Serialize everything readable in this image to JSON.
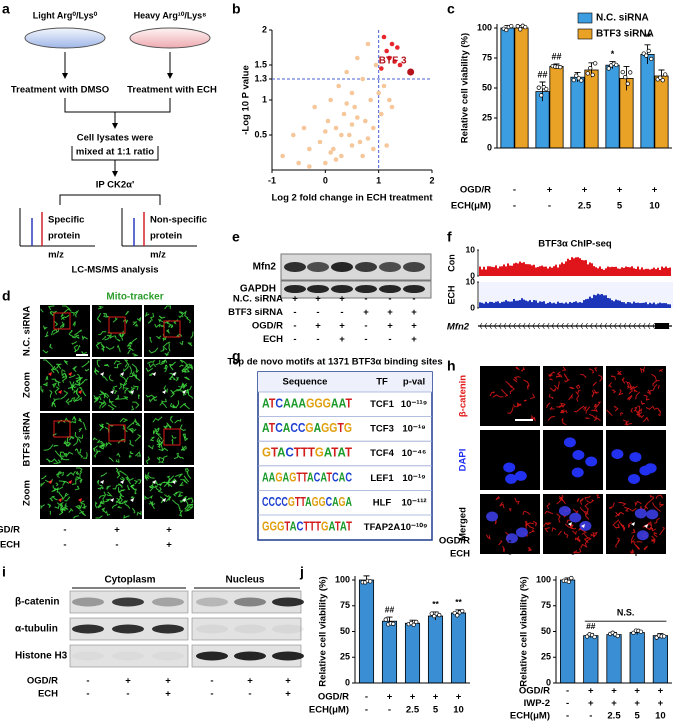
{
  "a": {
    "label": "a",
    "light": "Light  Arg⁰/Lys⁰",
    "heavy": "Heavy  Arg¹⁰/Lys⁸",
    "dmso": "Treatment with DMSO",
    "ech": "Treatment with ECH",
    "lysates": [
      "Cell lysates were",
      "mixed at 1:1 ratio"
    ],
    "ip": "IP CK2α'",
    "specific": [
      "Specific",
      "protein"
    ],
    "nonspecific": [
      "Non-specific",
      "protein"
    ],
    "mz": "m/z",
    "analysis": "LC-MS/MS analysis"
  },
  "b": {
    "label": "b",
    "type": "scatter",
    "x_label": "Log 2 fold change in ECH treatment",
    "y_label": "-Log 10 P value",
    "xlim": [
      -1,
      2
    ],
    "ylim": [
      0,
      2
    ],
    "xticks": [
      -1,
      0,
      1,
      2
    ],
    "yticks": [
      0.5,
      1,
      1.3,
      1.5,
      2
    ],
    "threshold_x": 1,
    "threshold_y": 1.3,
    "points": {
      "color": "#f6c79b",
      "x": [
        -0.8,
        -0.6,
        -0.5,
        -0.4,
        -0.3,
        -0.2,
        -0.1,
        0,
        0.05,
        0.1,
        0.15,
        0.2,
        0.25,
        0.3,
        0.35,
        0.4,
        0.45,
        0.5,
        0.55,
        0.6,
        0.65,
        0.7,
        0.75,
        0.8,
        0.85,
        0.9,
        0.95,
        1.0,
        1.05,
        1.1,
        1.2,
        1.25,
        -0.3,
        0.1,
        0.3,
        0.5,
        0.7,
        0.9,
        0.2,
        0.6,
        0.4,
        0.8,
        0.0,
        0.5,
        1.15
      ],
      "y": [
        0.2,
        0.5,
        0.1,
        0.6,
        0.3,
        0.9,
        0.4,
        0.1,
        0.7,
        1.0,
        0.3,
        0.6,
        1.2,
        0.2,
        0.8,
        1.4,
        0.5,
        1.1,
        0.9,
        1.6,
        0.4,
        1.3,
        0.7,
        1.8,
        1.0,
        0.6,
        1.5,
        1.1,
        0.8,
        1.2,
        1.0,
        0.9,
        0.05,
        0.25,
        0.5,
        0.35,
        0.2,
        0.3,
        0.15,
        0.75,
        0.95,
        0.45,
        0.55,
        0.65,
        0.35
      ]
    },
    "enriched": {
      "color": "#e8262e",
      "x": [
        1.1,
        1.15,
        1.2,
        1.25,
        1.3,
        1.35,
        1.05,
        1.4
      ],
      "y": [
        1.9,
        1.7,
        1.6,
        1.8,
        1.55,
        1.75,
        1.45,
        1.5
      ]
    },
    "hit": {
      "name": "BTF 3",
      "color": "#b5121b",
      "x": 1.6,
      "y": 1.4
    }
  },
  "c": {
    "label": "c",
    "type": "bar",
    "y_label": "Relative cell viability (%)",
    "ylim": [
      0,
      100
    ],
    "yticks": [
      0,
      25,
      50,
      75,
      100
    ],
    "series": [
      {
        "name": "N.C. siRNA",
        "color": "#3c9de0",
        "values": [
          100,
          47,
          59,
          69,
          78
        ],
        "errors": [
          2,
          8,
          4,
          3,
          8
        ]
      },
      {
        "name": "BTF3 siRNA",
        "color": "#e9a126",
        "values": [
          100,
          68,
          65,
          58,
          60
        ],
        "errors": [
          2,
          2,
          6,
          10,
          5
        ]
      }
    ],
    "annotations": [
      "##",
      "##",
      "*",
      "**"
    ],
    "rows": [
      {
        "label": "OGD/R",
        "values": [
          "-",
          "+",
          "+",
          "+",
          "+"
        ]
      },
      {
        "label": "ECH(μM)",
        "values": [
          "-",
          "-",
          "2.5",
          "5",
          "10"
        ]
      }
    ]
  },
  "d": {
    "label": "d",
    "title": "Mito-tracker",
    "row_labels": [
      "N.C. siRNA",
      "Zoom",
      "BTF3 siRNA",
      "Zoom"
    ],
    "rows": [
      {
        "label": "OGD/R",
        "values": [
          "-",
          "+",
          "+"
        ]
      },
      {
        "label": "ECH",
        "values": [
          "-",
          "-",
          "+"
        ]
      }
    ]
  },
  "e": {
    "label": "e",
    "bands": [
      "Mfn2",
      "GAPDH"
    ],
    "rows": [
      {
        "label": "N.C. siRNA",
        "values": [
          "+",
          "+",
          "+",
          "-",
          "-",
          "-"
        ]
      },
      {
        "label": "BTF3 siRNA",
        "values": [
          "-",
          "-",
          "-",
          "+",
          "+",
          "+"
        ]
      },
      {
        "label": "OGD/R",
        "values": [
          "-",
          "+",
          "+",
          "-",
          "+",
          "+"
        ]
      },
      {
        "label": "ECH",
        "values": [
          "-",
          "-",
          "+",
          "-",
          "-",
          "+"
        ]
      }
    ]
  },
  "f": {
    "label": "f",
    "title": "BTF3α ChIP-seq",
    "ylim": [
      0,
      10
    ],
    "yticks": [
      0,
      10
    ],
    "tracks": [
      {
        "name": "Con",
        "color": "#e0141b"
      },
      {
        "name": "ECH",
        "color": "#1d35b8"
      }
    ],
    "gene": "Mfn2"
  },
  "g": {
    "label": "g",
    "title": "Top de novo motifs at 1371 BTF3α binding sites",
    "columns": [
      "Sequence",
      "TF",
      "p-val"
    ],
    "rows": [
      [
        "ATCAAAGGGAAT",
        "TCF1",
        "10⁻¹¹⁹"
      ],
      [
        "ATCACCGAGGTG",
        "TCF3",
        "10⁻¹⁹"
      ],
      [
        "GTACTTTGATAT",
        "TCF4",
        "10⁻⁴⁶"
      ],
      [
        "AAGAGTTACATCAC",
        "LEF1",
        "10⁻¹⁹"
      ],
      [
        "CCCCGTTAGGCAGA",
        "HLF",
        "10⁻¹¹²"
      ],
      [
        "GGGTACTTTGATAT",
        "TFAP2A",
        "10⁻¹⁰⁹"
      ]
    ]
  },
  "h": {
    "label": "h",
    "row_labels": [
      "β-catenin",
      "DAPI",
      "Merged"
    ],
    "rows": [
      {
        "label": "OGD/R",
        "values": [
          "-",
          "+",
          "+"
        ]
      },
      {
        "label": "ECH",
        "values": [
          "-",
          "-",
          "+"
        ]
      }
    ]
  },
  "i": {
    "label": "i",
    "compartments": [
      "Cytoplasm",
      "Nucleus"
    ],
    "bands": [
      "β-catenin",
      "α-tubulin",
      "Histone H3"
    ],
    "rows": [
      {
        "label": "OGD/R",
        "values": [
          "-",
          "+",
          "+",
          "-",
          "+",
          "+"
        ]
      },
      {
        "label": "ECH",
        "values": [
          "-",
          "-",
          "+",
          "-",
          "-",
          "+"
        ]
      }
    ]
  },
  "j": {
    "label": "j",
    "charts": [
      {
        "type": "bar",
        "y_label": "Relative cell viability (%)",
        "color": "#3a8ed3",
        "ylim": [
          0,
          100
        ],
        "yticks": [
          0,
          25,
          50,
          75,
          100
        ],
        "values": [
          100,
          60,
          58,
          65,
          68
        ],
        "errors": [
          4,
          4,
          3,
          4,
          3
        ],
        "annotations": [
          "##",
          "**",
          "**"
        ],
        "rows": [
          {
            "label": "OGD/R",
            "values": [
              "-",
              "+",
              "+",
              "+",
              "+"
            ]
          },
          {
            "label": "ECH(μM)",
            "values": [
              "-",
              "-",
              "2.5",
              "5",
              "10"
            ]
          }
        ]
      },
      {
        "type": "bar",
        "y_label": "Relative cell viability (%)",
        "color": "#3a8ed3",
        "ylim": [
          0,
          100
        ],
        "yticks": [
          0,
          25,
          50,
          75,
          100
        ],
        "values": [
          100,
          46,
          47,
          49,
          46
        ],
        "errors": [
          2,
          2,
          2,
          2,
          2
        ],
        "annotations": [
          "##",
          "N.S."
        ],
        "rows": [
          {
            "label": "OGD/R",
            "values": [
              "-",
              "+",
              "+",
              "+",
              "+"
            ]
          },
          {
            "label": "IWP-2",
            "values": [
              "-",
              "+",
              "+",
              "+",
              "+"
            ]
          },
          {
            "label": "ECH(μM)",
            "values": [
              "-",
              "-",
              "2.5",
              "5",
              "10"
            ]
          }
        ]
      }
    ]
  }
}
